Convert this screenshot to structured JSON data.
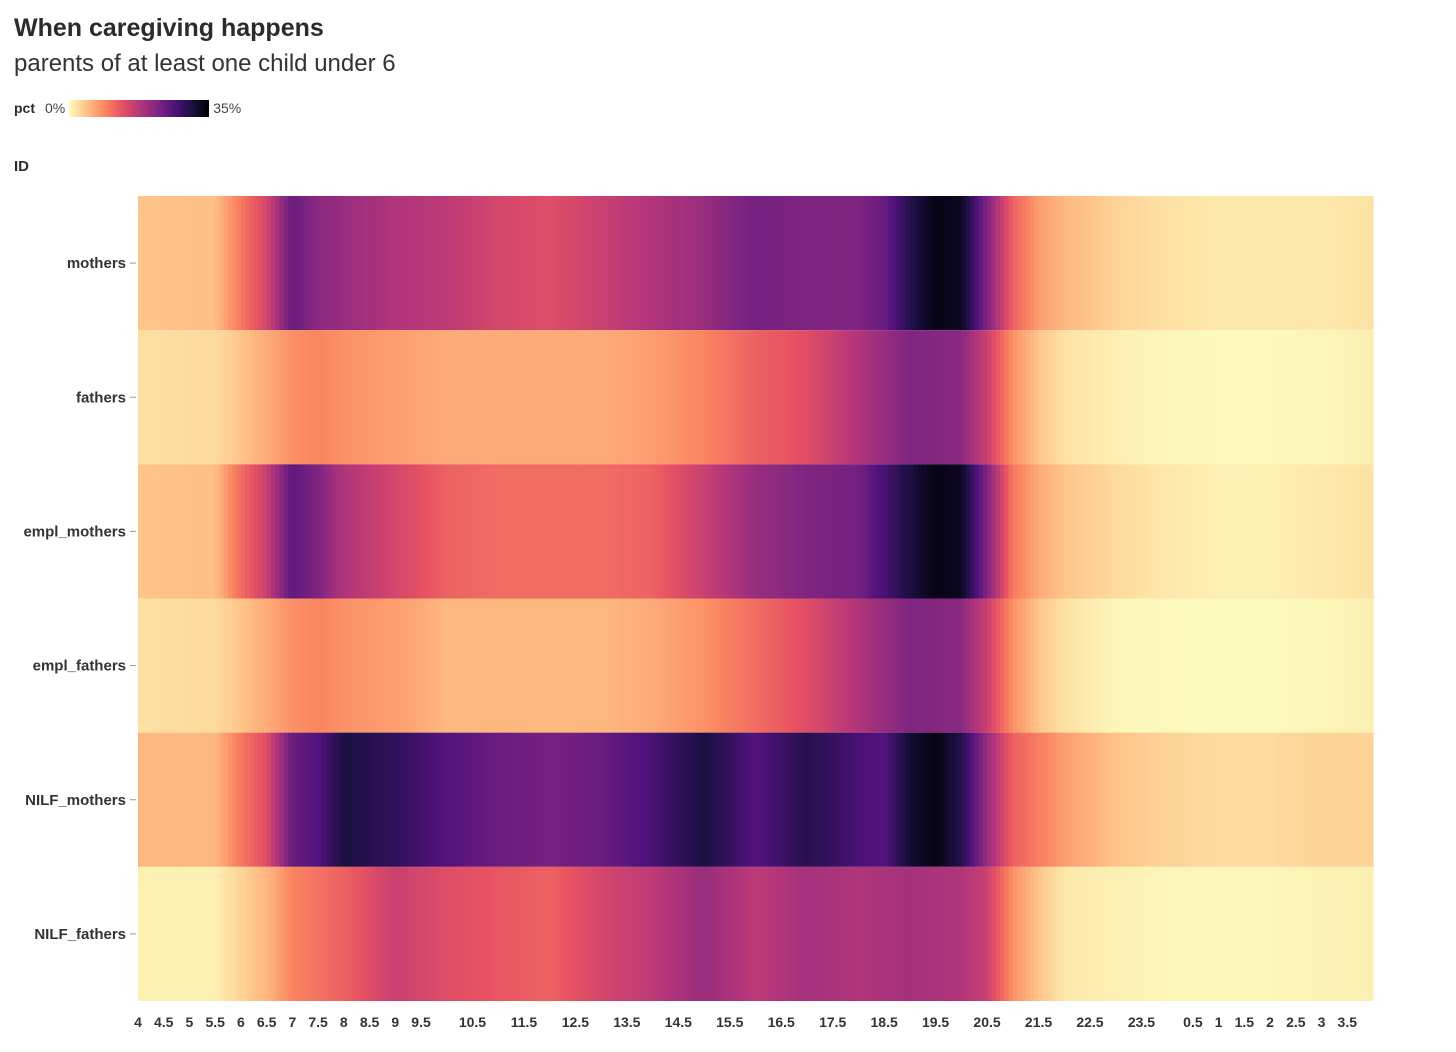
{
  "chart_data": {
    "type": "heatmap",
    "title": "When caregiving happens",
    "subtitle": "parents of at least one child under 6",
    "legend": {
      "title": "pct",
      "min_label": "0%",
      "max_label": "35%",
      "min": 0,
      "max": 35,
      "placement": "top-left",
      "colormap": "magma-reversed"
    },
    "ylabel": "ID",
    "rows": [
      "mothers",
      "fathers",
      "empl_mothers",
      "empl_fathers",
      "NILF_mothers",
      "NILF_fathers"
    ],
    "x_start_hour": 4,
    "x_end_hour": 28,
    "x_ticks": [
      "4",
      "4.5",
      "5",
      "5.5",
      "6",
      "6.5",
      "7",
      "7.5",
      "8",
      "8.5",
      "9",
      "9.5",
      "10.5",
      "11.5",
      "12.5",
      "13.5",
      "14.5",
      "15.5",
      "16.5",
      "17.5",
      "18.5",
      "19.5",
      "20.5",
      "21.5",
      "22.5",
      "23.5",
      "0.5",
      "1",
      "1.5",
      "2",
      "2.5",
      "3",
      "3.5"
    ],
    "x_tick_hours": [
      4,
      4.5,
      5,
      5.5,
      6,
      6.5,
      7,
      7.5,
      8,
      8.5,
      9,
      9.5,
      10.5,
      11.5,
      12.5,
      13.5,
      14.5,
      15.5,
      16.5,
      17.5,
      18.5,
      19.5,
      20.5,
      21.5,
      22.5,
      23.5,
      24.5,
      25,
      25.5,
      26,
      26.5,
      27,
      27.5
    ],
    "series": [
      {
        "name": "mothers",
        "points": [
          [
            4,
            4
          ],
          [
            5.5,
            4.5
          ],
          [
            6,
            10
          ],
          [
            6.5,
            15
          ],
          [
            7,
            24
          ],
          [
            7.5,
            21
          ],
          [
            8,
            20
          ],
          [
            9,
            18
          ],
          [
            10,
            17
          ],
          [
            11,
            15
          ],
          [
            12,
            14
          ],
          [
            13,
            16
          ],
          [
            14,
            18
          ],
          [
            15,
            20
          ],
          [
            16,
            23
          ],
          [
            17,
            22
          ],
          [
            18,
            22
          ],
          [
            18.5,
            24
          ],
          [
            19,
            30
          ],
          [
            19.5,
            34
          ],
          [
            20,
            33
          ],
          [
            20.5,
            22
          ],
          [
            21,
            12
          ],
          [
            21.5,
            7
          ],
          [
            22,
            5
          ],
          [
            23,
            3
          ],
          [
            24,
            2
          ],
          [
            25,
            1.5
          ],
          [
            26,
            1.5
          ],
          [
            27,
            1.5
          ],
          [
            28,
            2
          ]
        ]
      },
      {
        "name": "fathers",
        "points": [
          [
            4,
            2
          ],
          [
            5.5,
            2.5
          ],
          [
            6,
            4
          ],
          [
            6.5,
            6
          ],
          [
            7,
            8
          ],
          [
            7.5,
            9
          ],
          [
            8,
            8
          ],
          [
            9,
            7
          ],
          [
            10,
            6
          ],
          [
            11,
            6
          ],
          [
            12,
            6
          ],
          [
            13,
            6
          ],
          [
            14,
            7
          ],
          [
            15,
            9
          ],
          [
            16,
            12
          ],
          [
            17,
            14
          ],
          [
            18,
            18
          ],
          [
            19,
            22
          ],
          [
            20,
            21
          ],
          [
            20.5,
            16
          ],
          [
            21,
            8
          ],
          [
            21.5,
            4
          ],
          [
            22,
            2
          ],
          [
            23,
            1
          ],
          [
            24,
            0.5
          ],
          [
            25,
            0.3
          ],
          [
            26,
            0.3
          ],
          [
            27,
            0.5
          ],
          [
            28,
            1
          ]
        ]
      },
      {
        "name": "empl_mothers",
        "points": [
          [
            4,
            4
          ],
          [
            5.5,
            4.5
          ],
          [
            6,
            11
          ],
          [
            6.5,
            16
          ],
          [
            7,
            25
          ],
          [
            7.5,
            22
          ],
          [
            8,
            18
          ],
          [
            9,
            15
          ],
          [
            10,
            12
          ],
          [
            11,
            11
          ],
          [
            12,
            11
          ],
          [
            13,
            11
          ],
          [
            14,
            12
          ],
          [
            15,
            16
          ],
          [
            16,
            20
          ],
          [
            17,
            22
          ],
          [
            18,
            23
          ],
          [
            19,
            31
          ],
          [
            19.5,
            34
          ],
          [
            20,
            33
          ],
          [
            20.5,
            22
          ],
          [
            21,
            10
          ],
          [
            21.5,
            6
          ],
          [
            22,
            4
          ],
          [
            23,
            2.5
          ],
          [
            24,
            1.5
          ],
          [
            25,
            1
          ],
          [
            26,
            1
          ],
          [
            27,
            1.5
          ],
          [
            28,
            2
          ]
        ]
      },
      {
        "name": "empl_fathers",
        "points": [
          [
            4,
            2
          ],
          [
            5.5,
            2.5
          ],
          [
            6,
            4
          ],
          [
            6.5,
            6
          ],
          [
            7,
            8
          ],
          [
            7.5,
            9
          ],
          [
            8,
            8
          ],
          [
            9,
            7
          ],
          [
            10,
            5
          ],
          [
            11,
            5
          ],
          [
            12,
            5
          ],
          [
            13,
            5
          ],
          [
            14,
            6
          ],
          [
            15,
            8
          ],
          [
            16,
            11
          ],
          [
            17,
            14
          ],
          [
            18,
            18
          ],
          [
            19,
            22
          ],
          [
            20,
            21
          ],
          [
            20.5,
            16
          ],
          [
            21,
            8
          ],
          [
            21.5,
            4
          ],
          [
            22,
            2
          ],
          [
            23,
            0.5
          ],
          [
            24,
            0.3
          ],
          [
            25,
            0.2
          ],
          [
            26,
            0.2
          ],
          [
            27,
            0.5
          ],
          [
            28,
            1
          ]
        ]
      },
      {
        "name": "NILF_mothers",
        "points": [
          [
            4,
            5
          ],
          [
            5.5,
            5
          ],
          [
            6,
            10
          ],
          [
            6.5,
            14
          ],
          [
            7,
            24
          ],
          [
            7.5,
            26
          ],
          [
            8,
            31
          ],
          [
            9,
            29
          ],
          [
            10,
            26
          ],
          [
            11,
            24
          ],
          [
            12,
            23
          ],
          [
            13,
            24
          ],
          [
            14,
            27
          ],
          [
            15,
            31
          ],
          [
            16,
            26
          ],
          [
            17,
            30
          ],
          [
            18,
            27
          ],
          [
            18.5,
            26
          ],
          [
            19,
            32
          ],
          [
            19.5,
            34
          ],
          [
            20,
            30
          ],
          [
            20.5,
            20
          ],
          [
            21,
            12
          ],
          [
            22,
            7
          ],
          [
            23,
            4
          ],
          [
            24,
            3
          ],
          [
            25,
            2.5
          ],
          [
            26,
            2.5
          ],
          [
            27,
            3
          ],
          [
            28,
            3
          ]
        ]
      },
      {
        "name": "NILF_fathers",
        "points": [
          [
            4,
            1
          ],
          [
            5.5,
            1
          ],
          [
            6,
            3
          ],
          [
            6.5,
            5
          ],
          [
            7,
            9
          ],
          [
            8,
            12
          ],
          [
            9,
            16
          ],
          [
            10,
            14
          ],
          [
            11,
            13
          ],
          [
            12,
            12
          ],
          [
            13,
            15
          ],
          [
            14,
            17
          ],
          [
            15,
            20
          ],
          [
            16,
            17
          ],
          [
            17,
            19
          ],
          [
            18,
            18
          ],
          [
            19,
            19
          ],
          [
            20,
            18
          ],
          [
            20.5,
            16
          ],
          [
            21,
            8
          ],
          [
            21.5,
            4
          ],
          [
            22,
            1.5
          ],
          [
            23,
            1
          ],
          [
            24,
            0.5
          ],
          [
            25,
            0.5
          ],
          [
            26,
            0.5
          ],
          [
            27,
            0.8
          ],
          [
            28,
            1
          ]
        ]
      }
    ]
  }
}
